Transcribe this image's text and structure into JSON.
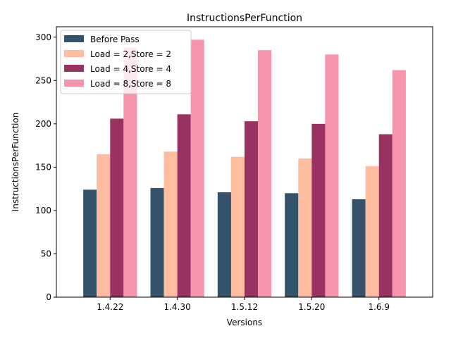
{
  "chart_data": {
    "type": "bar",
    "title": "InstructionsPerFunction",
    "xlabel": "Versions",
    "ylabel": "InstructionsPerFunction",
    "categories": [
      "1.4.22",
      "1.4.30",
      "1.5.12",
      "1.5.20",
      "1.6.9"
    ],
    "ylim": [
      0,
      312
    ],
    "yticks": [
      0,
      50,
      100,
      150,
      200,
      250,
      300
    ],
    "grid": false,
    "legend_position": "top-left",
    "series": [
      {
        "name": "Before Pass",
        "color": "#34526a",
        "values": [
          124,
          126,
          121,
          120,
          113
        ]
      },
      {
        "name": "Load = 2,Store = 2",
        "color": "#ffbca0",
        "values": [
          165,
          168,
          162,
          160,
          151
        ]
      },
      {
        "name": "Load = 4,Store = 4",
        "color": "#993262",
        "values": [
          206,
          211,
          203,
          200,
          188
        ]
      },
      {
        "name": "Load = 8,Store = 8",
        "color": "#f594aa",
        "values": [
          288,
          297,
          285,
          280,
          262
        ]
      }
    ]
  }
}
